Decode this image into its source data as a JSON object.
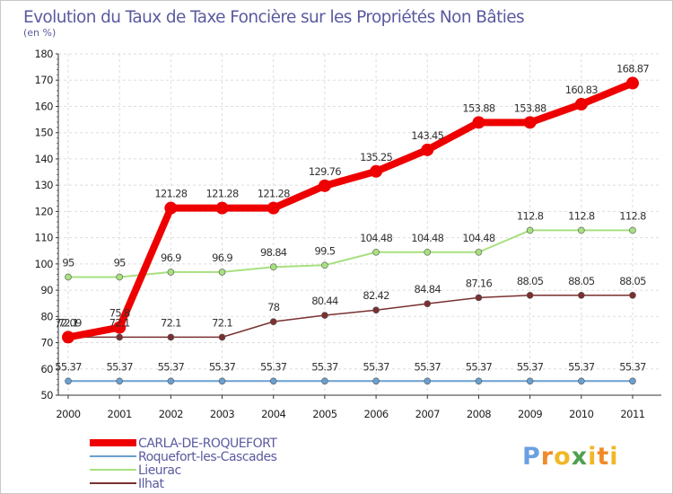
{
  "header": {
    "title": "Evolution du Taux de Taxe Foncière sur les Propriétés Non Bâties",
    "unit": "(en %)"
  },
  "brand": {
    "letters": [
      "P",
      "r",
      "o",
      "x",
      "i",
      "t",
      "i"
    ],
    "colors": [
      "#6aa0e0",
      "#f08a28",
      "#f0b828",
      "#50a050",
      "#f0b828",
      "#f08a28",
      "#f0b828"
    ]
  },
  "chart_data": {
    "type": "line",
    "title": "Evolution du Taux de Taxe Foncière sur les Propriétés Non Bâties",
    "ylabel": "(en %)",
    "xlabel": "",
    "ylim": [
      50,
      180
    ],
    "y_ticks": [
      50,
      60,
      70,
      80,
      90,
      100,
      110,
      120,
      130,
      140,
      150,
      160,
      170,
      180
    ],
    "categories": [
      "2000",
      "2001",
      "2002",
      "2003",
      "2004",
      "2005",
      "2006",
      "2007",
      "2008",
      "2009",
      "2010",
      "2011"
    ],
    "grid": true,
    "legend": "bottom-left",
    "series": [
      {
        "name": "CARLA-DE-ROQUEFORT",
        "color": "#ee0000",
        "values": [
          72.09,
          75.8,
          121.28,
          121.28,
          121.28,
          129.76,
          135.25,
          143.45,
          153.88,
          153.88,
          160.83,
          168.87
        ],
        "labels": [
          "72.09",
          "75.8",
          "121.28",
          "121.28",
          "121.28",
          "129.76",
          "135.25",
          "143.45",
          "153.88",
          "153.88",
          "160.83",
          "168.87"
        ]
      },
      {
        "name": "Roquefort-les-Cascades",
        "color": "#6aa0d0",
        "values": [
          55.37,
          55.37,
          55.37,
          55.37,
          55.37,
          55.37,
          55.37,
          55.37,
          55.37,
          55.37,
          55.37,
          55.37
        ],
        "labels": [
          "55.37",
          "55.37",
          "55.37",
          "55.37",
          "55.37",
          "55.37",
          "55.37",
          "55.37",
          "55.37",
          "55.37",
          "55.37",
          "55.37"
        ]
      },
      {
        "name": "Lieurac",
        "color": "#a8e080",
        "values": [
          95,
          95,
          96.9,
          96.9,
          98.84,
          99.5,
          104.48,
          104.48,
          104.48,
          112.8,
          112.8,
          112.8
        ],
        "labels": [
          "95",
          "95",
          "96.9",
          "96.9",
          "98.84",
          "99.5",
          "104.48",
          "104.48",
          "104.48",
          "112.8",
          "112.8",
          "112.8"
        ]
      },
      {
        "name": "Ilhat",
        "color": "#7a3030",
        "values": [
          72.1,
          72.1,
          72.1,
          72.1,
          78,
          80.44,
          82.42,
          84.84,
          87.16,
          88.05,
          88.05,
          88.05
        ],
        "labels": [
          "72.1",
          "72.1",
          "72.1",
          "72.1",
          "78",
          "80.44",
          "82.42",
          "84.84",
          "87.16",
          "88.05",
          "88.05",
          "88.05"
        ]
      }
    ]
  }
}
